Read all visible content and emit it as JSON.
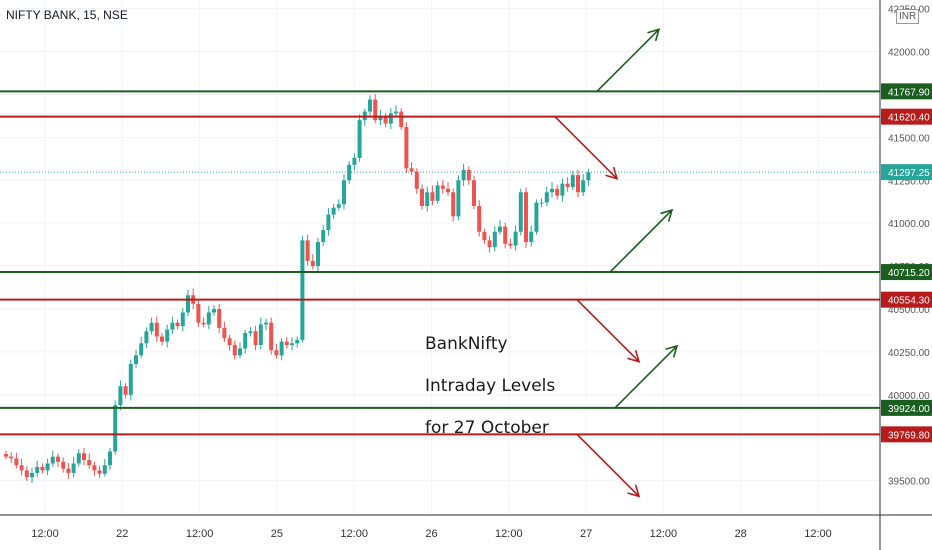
{
  "header": {
    "title": "NIFTY BANK, 15, NSE",
    "currency": "INR"
  },
  "annotation": {
    "lines": [
      "BankNifty",
      "Intraday Levels",
      "for 27 October"
    ]
  },
  "colors": {
    "up": "#26a69a",
    "down": "#ef5350",
    "support": "#1b5e20",
    "resistance": "#b71c1c",
    "last": "#26a69a"
  },
  "chart_data": {
    "type": "candlestick",
    "ylim": [
      39300,
      42300
    ],
    "y_ticks": [
      {
        "value": 42250,
        "label": "42250.00"
      },
      {
        "value": 42000,
        "label": "42000.00"
      },
      {
        "value": 41750,
        "label": "41750.00"
      },
      {
        "value": 41500,
        "label": "41500.00"
      },
      {
        "value": 41250,
        "label": "41250.00"
      },
      {
        "value": 41000,
        "label": "41000.00"
      },
      {
        "value": 40750,
        "label": "40750.00"
      },
      {
        "value": 40500,
        "label": "40500.00"
      },
      {
        "value": 40250,
        "label": "40250.00"
      },
      {
        "value": 40000,
        "label": "40000.00"
      },
      {
        "value": 39750,
        "label": "39750.00"
      },
      {
        "value": 39500,
        "label": "39500.00"
      }
    ],
    "x_ticks": [
      "12:00",
      "22",
      "12:00",
      "25",
      "12:00",
      "26",
      "12:00",
      "27",
      "12:00",
      "28",
      "12:00"
    ],
    "levels": [
      {
        "value": 41767.9,
        "label": "41767.90",
        "kind": "support",
        "arrow": "up"
      },
      {
        "value": 41620.4,
        "label": "41620.40",
        "kind": "resistance",
        "arrow": "down"
      },
      {
        "value": 40715.2,
        "label": "40715.20",
        "kind": "support",
        "arrow": "up"
      },
      {
        "value": 40554.3,
        "label": "40554.30",
        "kind": "resistance",
        "arrow": "down"
      },
      {
        "value": 39924.0,
        "label": "39924.00",
        "kind": "support",
        "arrow": "up"
      },
      {
        "value": 39769.8,
        "label": "39769.80",
        "kind": "resistance",
        "arrow": "down"
      }
    ],
    "last_price": {
      "value": 41297.25,
      "label": "41297.25"
    },
    "candles_close": [
      39640,
      39630,
      39590,
      39560,
      39520,
      39545,
      39580,
      39560,
      39600,
      39640,
      39610,
      39570,
      39545,
      39600,
      39660,
      39620,
      39590,
      39560,
      39540,
      39590,
      39670,
      39940,
      40050,
      40000,
      40180,
      40230,
      40300,
      40370,
      40420,
      40340,
      40310,
      40380,
      40420,
      40400,
      40480,
      40580,
      40530,
      40420,
      40410,
      40480,
      40500,
      40390,
      40330,
      40290,
      40230,
      40270,
      40360,
      40370,
      40290,
      40410,
      40420,
      40260,
      40230,
      40310,
      40290,
      40300,
      40320,
      40900,
      40780,
      40750,
      40890,
      40960,
      41050,
      41090,
      41110,
      41250,
      41340,
      41380,
      41600,
      41650,
      41720,
      41600,
      41620,
      41580,
      41640,
      41650,
      41560,
      41320,
      41300,
      41200,
      41100,
      41180,
      41130,
      41220,
      41200,
      41180,
      41040,
      41250,
      41310,
      41250,
      41100,
      40950,
      40900,
      40860,
      40950,
      40980,
      40880,
      40870,
      40950,
      41180,
      40890,
      40950,
      41120,
      41120,
      41180,
      41200,
      41160,
      41230,
      41210,
      41280,
      41180,
      41250,
      41297
    ]
  }
}
